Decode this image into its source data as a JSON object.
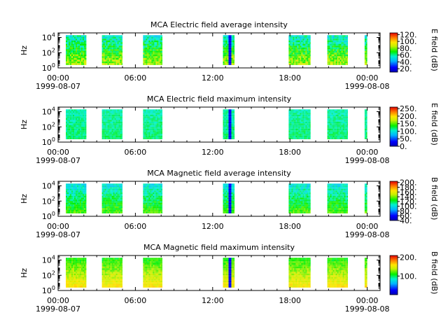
{
  "chart_data": [
    {
      "type": "heatmap",
      "title": "MCA  Electric field average intensity",
      "ylabel": "Hz",
      "colorbar_label": "E field (dB)",
      "colorbar_ticks": [
        "120.",
        "100.",
        "80.",
        "60.",
        "40.",
        "20."
      ],
      "colorbar_values": [
        120,
        100,
        80,
        60,
        40,
        20
      ],
      "clim": [
        10,
        125
      ],
      "level_low_freq": 85,
      "level_high_freq": 55
    },
    {
      "type": "heatmap",
      "title": "MCA  Electric field maximum intensity",
      "ylabel": "Hz",
      "colorbar_label": "E field (dB)",
      "colorbar_ticks": [
        "250.",
        "200.",
        "150.",
        "100.",
        "50.",
        "0."
      ],
      "colorbar_values": [
        250,
        200,
        150,
        100,
        50,
        0
      ],
      "clim": [
        0,
        260
      ],
      "level_low_freq": 120,
      "level_high_freq": 110
    },
    {
      "type": "heatmap",
      "title": "MCA  Magnetic field average intensity",
      "ylabel": "Hz",
      "colorbar_label": "B field (dB)",
      "colorbar_ticks": [
        "200.",
        "180.",
        "160.",
        "140.",
        "120.",
        "100.",
        "80.",
        "60.",
        "40."
      ],
      "colorbar_values": [
        200,
        180,
        160,
        140,
        120,
        100,
        80,
        60,
        40
      ],
      "clim": [
        40,
        205
      ],
      "level_low_freq": 135,
      "level_high_freq": 100
    },
    {
      "type": "heatmap",
      "title": "MCA  Magnetic field maximum intensity",
      "ylabel": "Hz",
      "colorbar_label": "B field (dB)",
      "colorbar_ticks": [
        "200.",
        "100."
      ],
      "colorbar_values": [
        200,
        100
      ],
      "clim": [
        0,
        210
      ],
      "level_low_freq": 160,
      "level_high_freq": 110
    }
  ],
  "shared": {
    "x_tick_labels": [
      "00:00",
      "06:00",
      "12:00",
      "18:00",
      "00:00"
    ],
    "x_tick_hours": [
      0,
      6,
      12,
      18,
      24
    ],
    "x_range_hours": [
      0,
      25
    ],
    "date_start": "1999-08-07",
    "date_end": "1999-08-08",
    "y_tick_exponents": [
      0,
      2,
      4
    ],
    "y_range_log10": [
      0,
      4.6
    ],
    "data_y_range_log10": [
      0.4,
      4.3
    ],
    "data_intervals_hours": [
      [
        0.6,
        2.2
      ],
      [
        3.4,
        5.0
      ],
      [
        6.6,
        8.1
      ],
      [
        12.8,
        13.7
      ],
      [
        17.9,
        19.6
      ],
      [
        20.9,
        22.5
      ],
      [
        23.8,
        24.0
      ]
    ]
  }
}
